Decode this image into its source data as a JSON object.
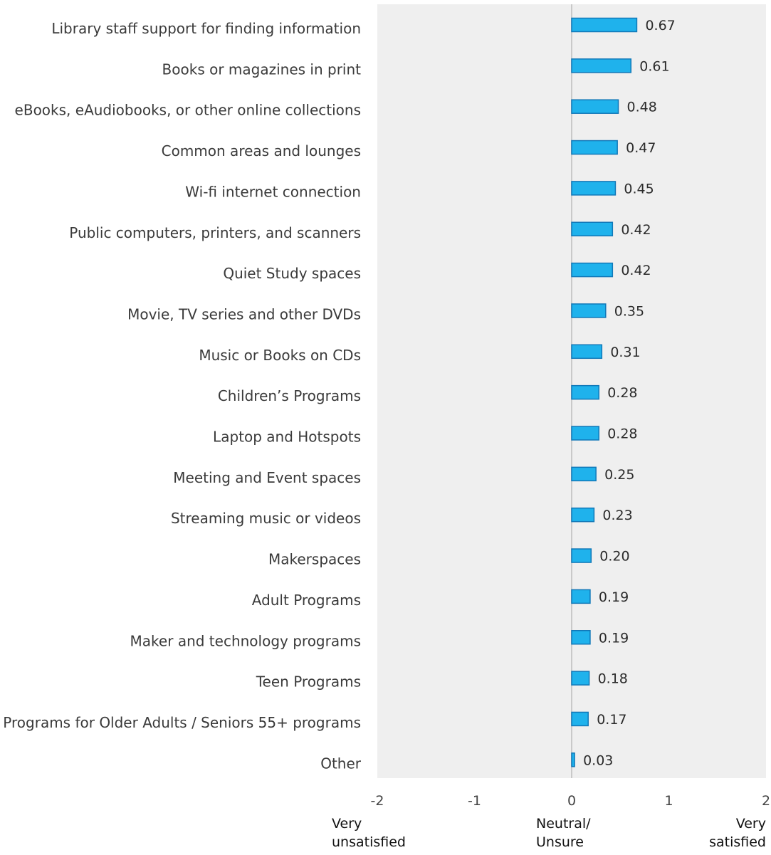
{
  "chart_data": {
    "type": "bar",
    "orientation": "horizontal",
    "categories": [
      "Library staff support for finding information",
      "Books or magazines in print",
      "eBooks, eAudiobooks, or other online collections",
      "Common areas and lounges",
      "Wi-fi internet connection",
      "Public computers, printers, and scanners",
      "Quiet Study spaces",
      "Movie, TV series and other DVDs",
      "Music or Books on CDs",
      "Children’s Programs",
      "Laptop and Hotspots",
      "Meeting and Event spaces",
      "Streaming music or videos",
      "Makerspaces",
      "Adult Programs",
      "Maker and technology programs",
      "Teen Programs",
      "Programs for Older Adults / Seniors 55+ programs",
      "Other"
    ],
    "values": [
      0.67,
      0.61,
      0.48,
      0.47,
      0.45,
      0.42,
      0.42,
      0.35,
      0.31,
      0.28,
      0.28,
      0.25,
      0.23,
      0.2,
      0.19,
      0.19,
      0.18,
      0.17,
      0.03
    ],
    "value_labels": [
      "0.67",
      "0.61",
      "0.48",
      "0.47",
      "0.45",
      "0.42",
      "0.42",
      "0.35",
      "0.31",
      "0.28",
      "0.28",
      "0.25",
      "0.23",
      "0.20",
      "0.19",
      "0.19",
      "0.18",
      "0.17",
      "0.03"
    ],
    "xlim": [
      -2,
      2
    ],
    "x_ticks": [
      -2,
      -1,
      0,
      1,
      2
    ],
    "x_tick_labels": [
      "-2",
      "-1",
      "0",
      "1",
      "2"
    ],
    "scale_anchors": [
      {
        "at": -2,
        "lines": [
          "Very",
          "unsatisfied"
        ]
      },
      {
        "at": 0,
        "lines": [
          "Neutral/",
          "Unsure"
        ]
      },
      {
        "at": 2,
        "lines": [
          "Very",
          "satisfied"
        ]
      }
    ],
    "grid": false,
    "legend": "none",
    "colors": {
      "bar_fill": "#1fb2ec",
      "bar_stroke": "#1178b8",
      "plot_background": "#efefef",
      "zero_line": "#c9c9c9"
    }
  }
}
